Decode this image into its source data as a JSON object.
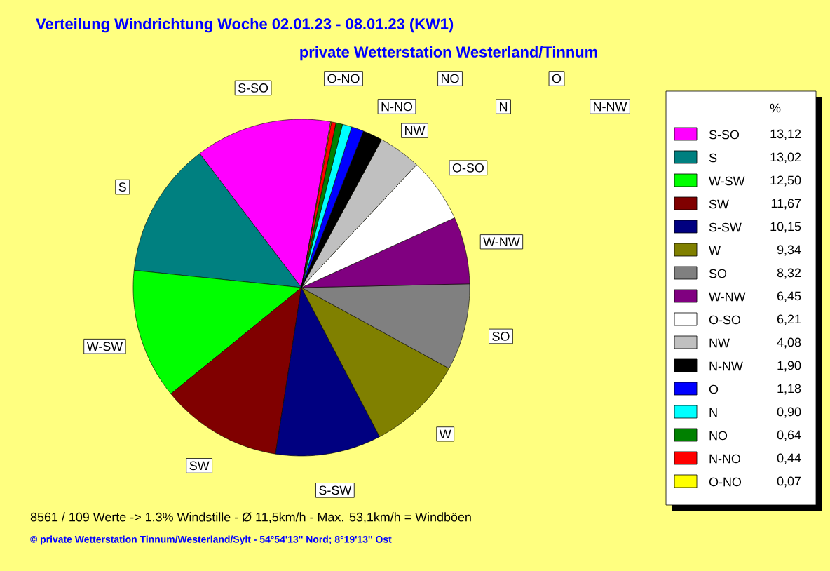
{
  "chart_data": {
    "type": "pie",
    "title": "Verteilung Windrichtung   Woche 02.01.23 - 08.01.23 (KW1)",
    "subtitle": "private Wetterstation Westerland/Tinnum",
    "categories": [
      "S-SO",
      "S",
      "W-SW",
      "SW",
      "S-SW",
      "W",
      "SO",
      "W-NW",
      "O-SO",
      "NW",
      "N-NW",
      "O",
      "N",
      "NO",
      "N-NO",
      "O-NO"
    ],
    "values": [
      13.12,
      13.02,
      12.5,
      11.67,
      10.15,
      9.34,
      8.32,
      6.45,
      6.21,
      4.08,
      1.9,
      1.18,
      0.9,
      0.64,
      0.44,
      0.07
    ],
    "value_labels": [
      "13,12",
      "13,02",
      "12,50",
      "11,67",
      "10,15",
      "9,34",
      "8,32",
      "6,45",
      "6,21",
      "4,08",
      "1,90",
      "1,18",
      "0,90",
      "0,64",
      "0,44",
      "0,07"
    ],
    "colors": [
      "#ff00ff",
      "#008080",
      "#00ff00",
      "#800000",
      "#000080",
      "#808000",
      "#808080",
      "#800080",
      "#ffffff",
      "#c0c0c0",
      "#000000",
      "#0000ff",
      "#00ffff",
      "#008000",
      "#ff0000",
      "#ffff00"
    ],
    "legend": "right",
    "legend_title": "%",
    "annotations": [
      "8561 / 109 Werte  -> 1.3% Windstille   -   Ø 11,5km/h  -  Max. 53,1km/h = Windböen",
      "© private Wetterstation Tinnum/Westerland/Sylt   -   54°54'13'' Nord; 8°19'13'' Ost"
    ]
  }
}
